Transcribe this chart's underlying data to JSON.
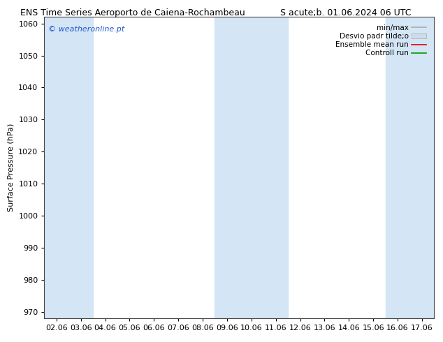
{
  "title_left": "ENS Time Series Aeroporto de Caiena-Rochambeau",
  "title_right": "S acute;b. 01.06.2024 06 UTC",
  "ylabel": "Surface Pressure (hPa)",
  "ylim": [
    968,
    1062
  ],
  "yticks": [
    970,
    980,
    990,
    1000,
    1010,
    1020,
    1030,
    1040,
    1050,
    1060
  ],
  "xlim": [
    -0.5,
    15.5
  ],
  "xtick_labels": [
    "02.06",
    "03.06",
    "04.06",
    "05.06",
    "06.06",
    "07.06",
    "08.06",
    "09.06",
    "10.06",
    "11.06",
    "12.06",
    "13.06",
    "14.06",
    "15.06",
    "16.06",
    "17.06"
  ],
  "xtick_positions": [
    0,
    1,
    2,
    3,
    4,
    5,
    6,
    7,
    8,
    9,
    10,
    11,
    12,
    13,
    14,
    15
  ],
  "shaded_columns": [
    0,
    1,
    7,
    8,
    9,
    14,
    15
  ],
  "shaded_color": "#d4e6f5",
  "background_color": "#ffffff",
  "plot_bg_color": "#ffffff",
  "watermark": "© weatheronline.pt",
  "watermark_color": "#2255cc",
  "legend_labels": [
    "min/max",
    "Desvio padr tilde;o",
    "Ensemble mean run",
    "Controll run"
  ],
  "minmax_color": "#aaaaaa",
  "desvio_color": "#ccdded",
  "ensemble_color": "#dd0000",
  "control_color": "#009900",
  "title_fontsize": 9,
  "ylabel_fontsize": 8,
  "tick_fontsize": 8,
  "legend_fontsize": 7.5,
  "watermark_fontsize": 8
}
